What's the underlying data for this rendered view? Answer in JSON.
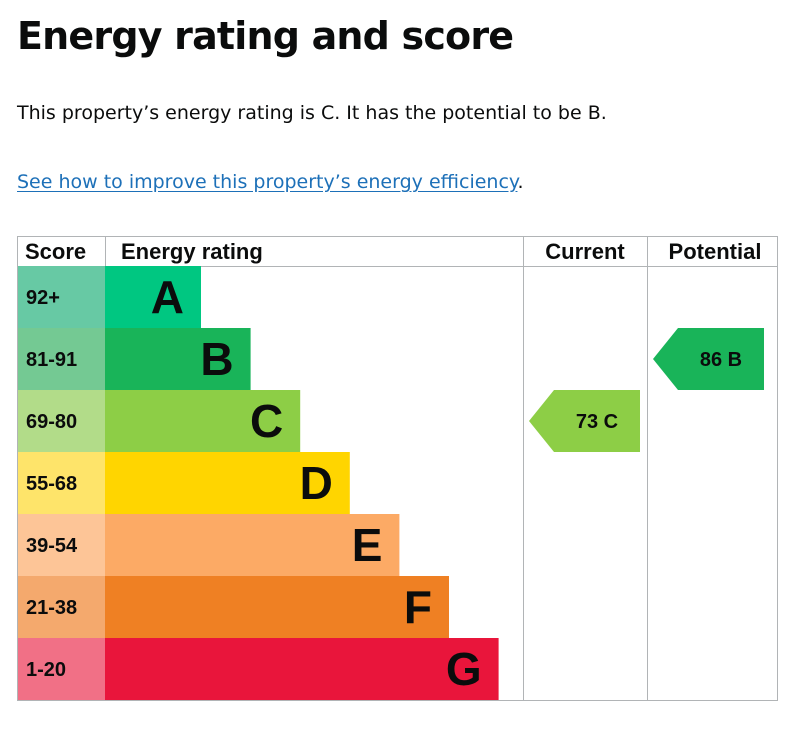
{
  "page": {
    "title": "Energy rating and score",
    "description": "This property’s energy rating is C. It has the potential to be B.",
    "link_text": "See how to improve this property’s energy efficiency",
    "link_suffix": "."
  },
  "chart_data": {
    "type": "bar",
    "title": "",
    "columns": [
      "Score",
      "Energy rating",
      "Current",
      "Potential"
    ],
    "bands": [
      {
        "band": "A",
        "score_range": "92+",
        "bar_color": "#00c781",
        "score_bg": "#67c9a4"
      },
      {
        "band": "B",
        "score_range": "81-91",
        "bar_color": "#19b459",
        "score_bg": "#74c993"
      },
      {
        "band": "C",
        "score_range": "69-80",
        "bar_color": "#8dce46",
        "score_bg": "#b2dc89"
      },
      {
        "band": "D",
        "score_range": "55-68",
        "bar_color": "#ffd500",
        "score_bg": "#fee46a"
      },
      {
        "band": "E",
        "score_range": "39-54",
        "bar_color": "#fcaa65",
        "score_bg": "#fdc597"
      },
      {
        "band": "F",
        "score_range": "21-38",
        "bar_color": "#ef8023",
        "score_bg": "#f4a96d"
      },
      {
        "band": "G",
        "score_range": "1-20",
        "bar_color": "#e9153b",
        "score_bg": "#f17086"
      }
    ],
    "current": {
      "score": 73,
      "band": "C",
      "label": "73  C"
    },
    "potential": {
      "score": 86,
      "band": "B",
      "label": "86  B"
    }
  }
}
